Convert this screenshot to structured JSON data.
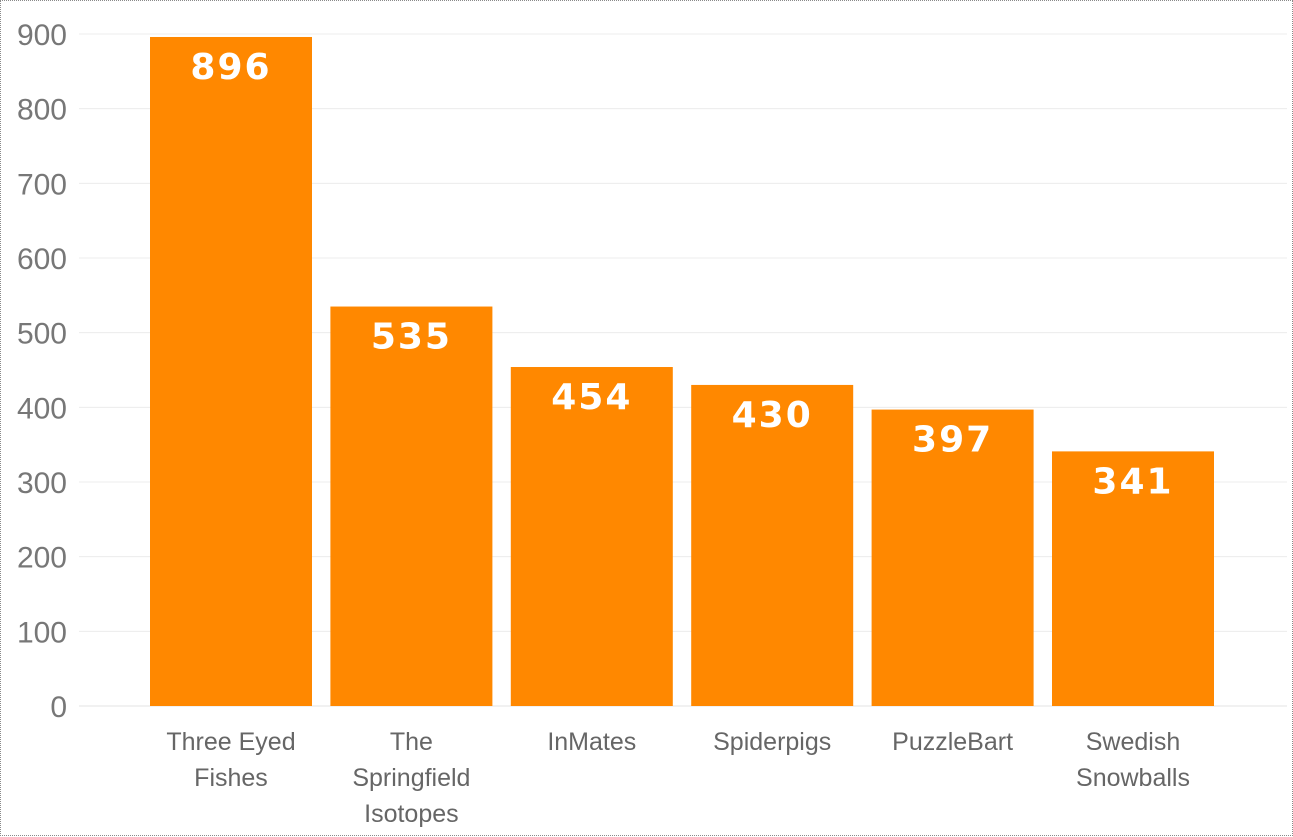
{
  "chart_data": {
    "type": "bar",
    "categories": [
      [
        "Three Eyed",
        "Fishes"
      ],
      [
        "The",
        "Springfield",
        "Isotopes"
      ],
      [
        "InMates"
      ],
      [
        "Spiderpigs"
      ],
      [
        "PuzzleBart"
      ],
      [
        "Swedish",
        "Snowballs"
      ]
    ],
    "values": [
      896,
      535,
      454,
      430,
      397,
      341
    ],
    "data_labels": [
      "896",
      "535",
      "454",
      "430",
      "397",
      "341"
    ],
    "y_ticks": [
      "0",
      "100",
      "200",
      "300",
      "400",
      "500",
      "600",
      "700",
      "800",
      "900"
    ],
    "ylim": [
      0,
      900
    ],
    "grid": true,
    "bar_color": "#FF8800",
    "title": "",
    "xlabel": "",
    "ylabel": ""
  }
}
